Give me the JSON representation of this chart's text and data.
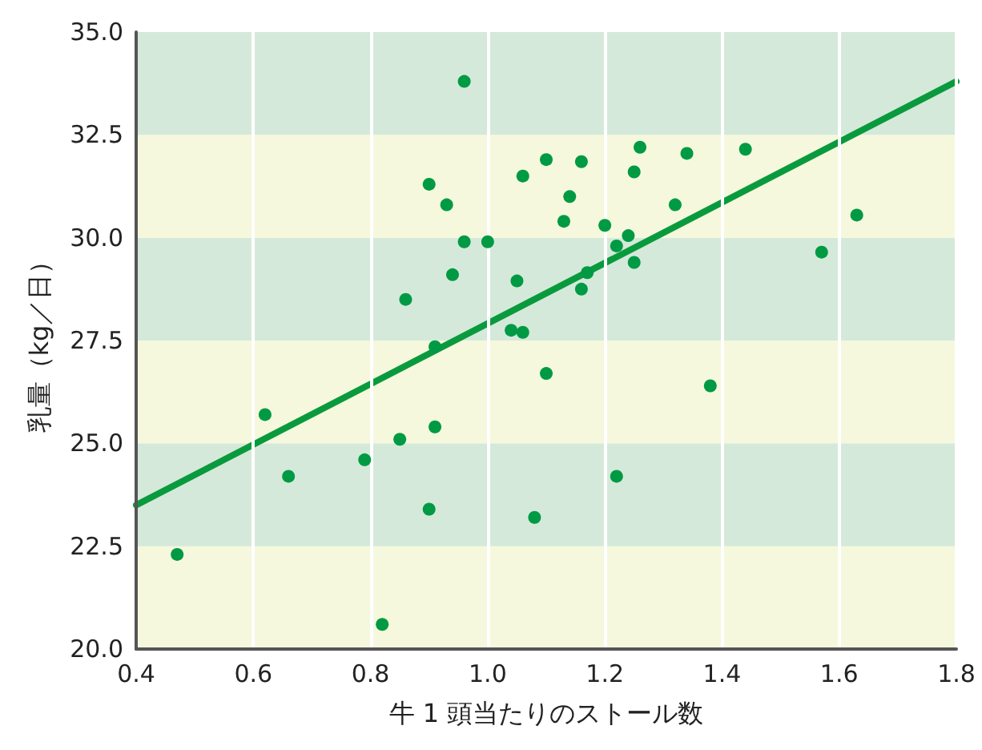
{
  "chart_data": {
    "type": "scatter",
    "xlabel": "牛 1 頭当たりのストール数",
    "ylabel": "乳量（kg／日）",
    "xlim": [
      0.4,
      1.8
    ],
    "ylim": [
      20,
      35
    ],
    "xticks": [
      {
        "value": 0.4,
        "label": "0.4"
      },
      {
        "value": 0.6,
        "label": "0.6"
      },
      {
        "value": 0.8,
        "label": "0.8"
      },
      {
        "value": 1.0,
        "label": "1.0"
      },
      {
        "value": 1.2,
        "label": "1.2"
      },
      {
        "value": 1.4,
        "label": "1.4"
      },
      {
        "value": 1.6,
        "label": "1.6"
      },
      {
        "value": 1.8,
        "label": "1.8"
      }
    ],
    "yticks": [
      {
        "value": 20,
        "label": "20.0"
      },
      {
        "value": 22.5,
        "label": "22.5"
      },
      {
        "value": 25,
        "label": "25.0"
      },
      {
        "value": 27.5,
        "label": "27.5"
      },
      {
        "value": 30,
        "label": "30.0"
      },
      {
        "value": 32.5,
        "label": "32.5"
      },
      {
        "value": 35,
        "label": "35.0"
      }
    ],
    "grid": "x",
    "marker": "circle",
    "bands": [
      {
        "axis": "y",
        "from": 20,
        "to": 22.5,
        "color": "#f5f8dc"
      },
      {
        "axis": "y",
        "from": 22.5,
        "to": 25,
        "color": "#d5e9da"
      },
      {
        "axis": "y",
        "from": 25,
        "to": 27.5,
        "color": "#f5f8dc"
      },
      {
        "axis": "y",
        "from": 27.5,
        "to": 30,
        "color": "#d5e9da"
      },
      {
        "axis": "y",
        "from": 30,
        "to": 32.5,
        "color": "#f5f8dc"
      },
      {
        "axis": "y",
        "from": 32.5,
        "to": 35,
        "color": "#d5e9da"
      }
    ],
    "series": [
      {
        "color": "#009a44",
        "x": [
          0.47,
          0.62,
          0.66,
          0.79,
          0.82,
          0.85,
          0.86,
          0.9,
          0.9,
          0.91,
          0.91,
          0.93,
          0.94,
          0.96,
          0.96,
          1.0,
          1.04,
          1.05,
          1.06,
          1.06,
          1.08,
          1.1,
          1.1,
          1.16,
          1.14,
          1.13,
          1.2,
          1.22,
          1.24,
          1.25,
          1.26,
          1.25,
          1.34,
          1.32,
          1.44,
          1.63,
          1.57,
          1.17,
          1.16,
          1.38,
          1.22
        ],
        "values": [
          22.3,
          25.7,
          24.2,
          24.6,
          20.6,
          25.1,
          28.5,
          31.3,
          23.4,
          27.35,
          25.4,
          30.8,
          29.1,
          33.8,
          29.9,
          29.9,
          27.75,
          28.95,
          27.7,
          31.5,
          23.2,
          31.9,
          26.7,
          31.85,
          31.0,
          30.4,
          30.3,
          29.8,
          30.05,
          29.4,
          32.2,
          31.6,
          32.05,
          30.8,
          32.15,
          30.55,
          29.65,
          29.15,
          28.75,
          26.4,
          24.2
        ]
      },
      {
        "type": "line",
        "color": "#0a9a3e",
        "line_style": "solid",
        "marker": "none",
        "x": [
          0.4,
          1.8
        ],
        "values": [
          23.5,
          33.8
        ]
      }
    ]
  }
}
